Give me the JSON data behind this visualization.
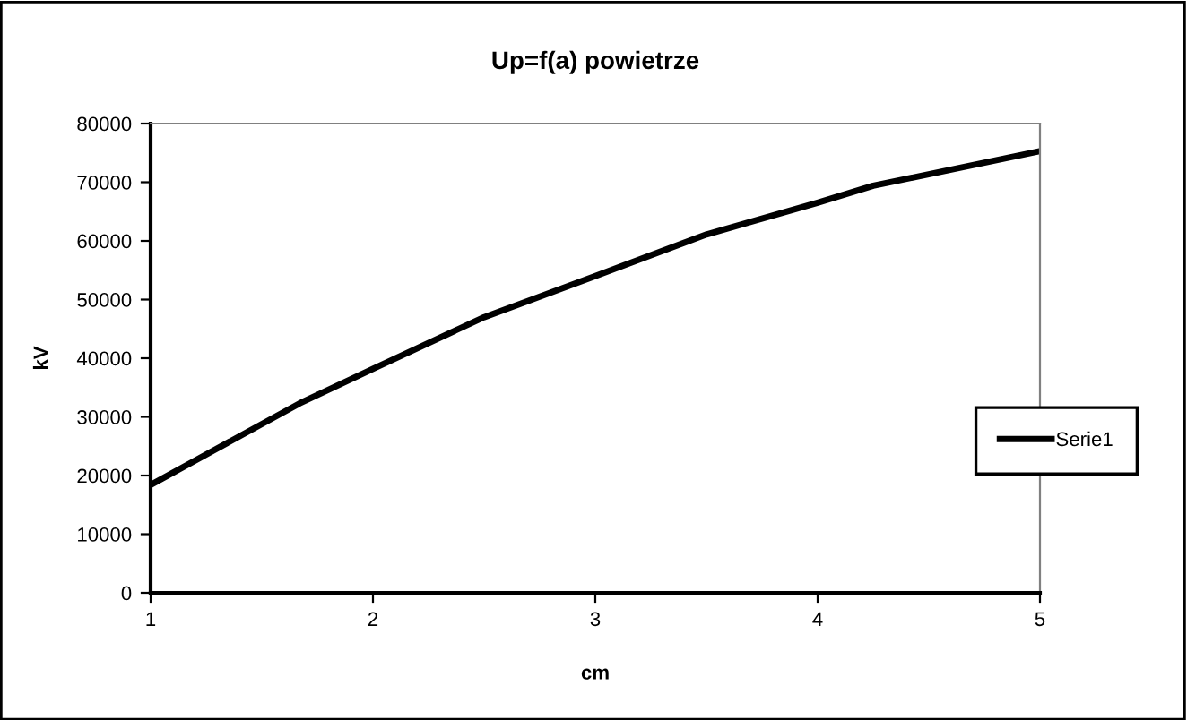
{
  "chart_data": {
    "type": "line",
    "title": "Up=f(a) powietrze",
    "xlabel": "cm",
    "ylabel": "kV",
    "x": [
      1,
      1.67,
      2,
      2.5,
      3,
      3.5,
      4,
      4.25,
      5
    ],
    "series": [
      {
        "name": "Serie1",
        "color": "#000000",
        "values": [
          18400,
          32300,
          38200,
          47000,
          54000,
          61100,
          66500,
          69400,
          75300
        ]
      }
    ],
    "xlim": [
      1,
      5
    ],
    "xticks": [
      1,
      2,
      3,
      4,
      5
    ],
    "ylim": [
      0,
      80000
    ],
    "yticks": [
      0,
      10000,
      20000,
      30000,
      40000,
      50000,
      60000,
      70000,
      80000
    ],
    "grid": false,
    "legend": "right",
    "marker": "none",
    "line_style": "solid"
  }
}
